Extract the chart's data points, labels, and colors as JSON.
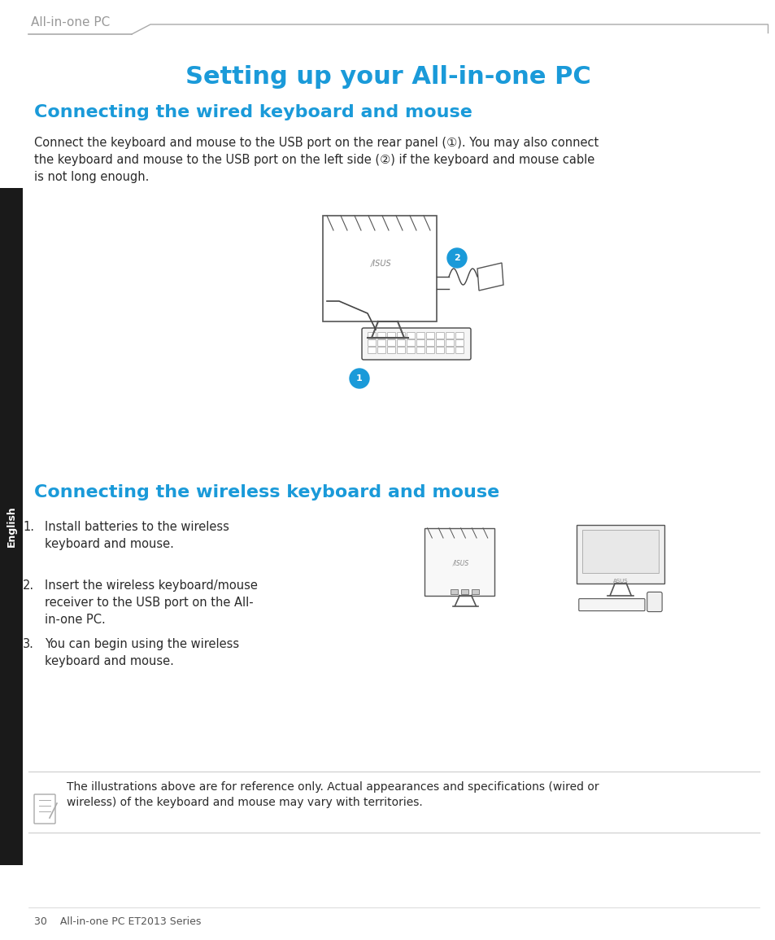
{
  "bg_color": "#ffffff",
  "page_width": 9.54,
  "page_height": 11.55,
  "header_text": "All-in-one PC",
  "header_color": "#999999",
  "header_line_color": "#aaaaaa",
  "title": "Setting up your All-in-one PC",
  "title_color": "#1a9ad9",
  "title_fontsize": 22,
  "section1_heading": "Connecting the wired keyboard and mouse",
  "section1_heading_color": "#1a9ad9",
  "section1_heading_fontsize": 16,
  "section2_heading": "Connecting the wireless keyboard and mouse",
  "section2_heading_color": "#1a9ad9",
  "section2_heading_fontsize": 16,
  "section2_items": [
    "Install batteries to the wireless\nkeyboard and mouse.",
    "Insert the wireless keyboard/mouse\nreceiver to the USB port on the All-\nin-one PC.",
    "You can begin using the wireless\nkeyboard and mouse."
  ],
  "note_text": "The illustrations above are for reference only. Actual appearances and specifications (wired or\nwireless) of the keyboard and mouse may vary with territories.",
  "footer_text": "30    All-in-one PC ET2013 Series",
  "sidebar_text": "English",
  "sidebar_bg": "#1a1a1a",
  "sidebar_text_color": "#ffffff",
  "body_fontsize": 10.5,
  "note_fontsize": 10,
  "footer_fontsize": 9
}
